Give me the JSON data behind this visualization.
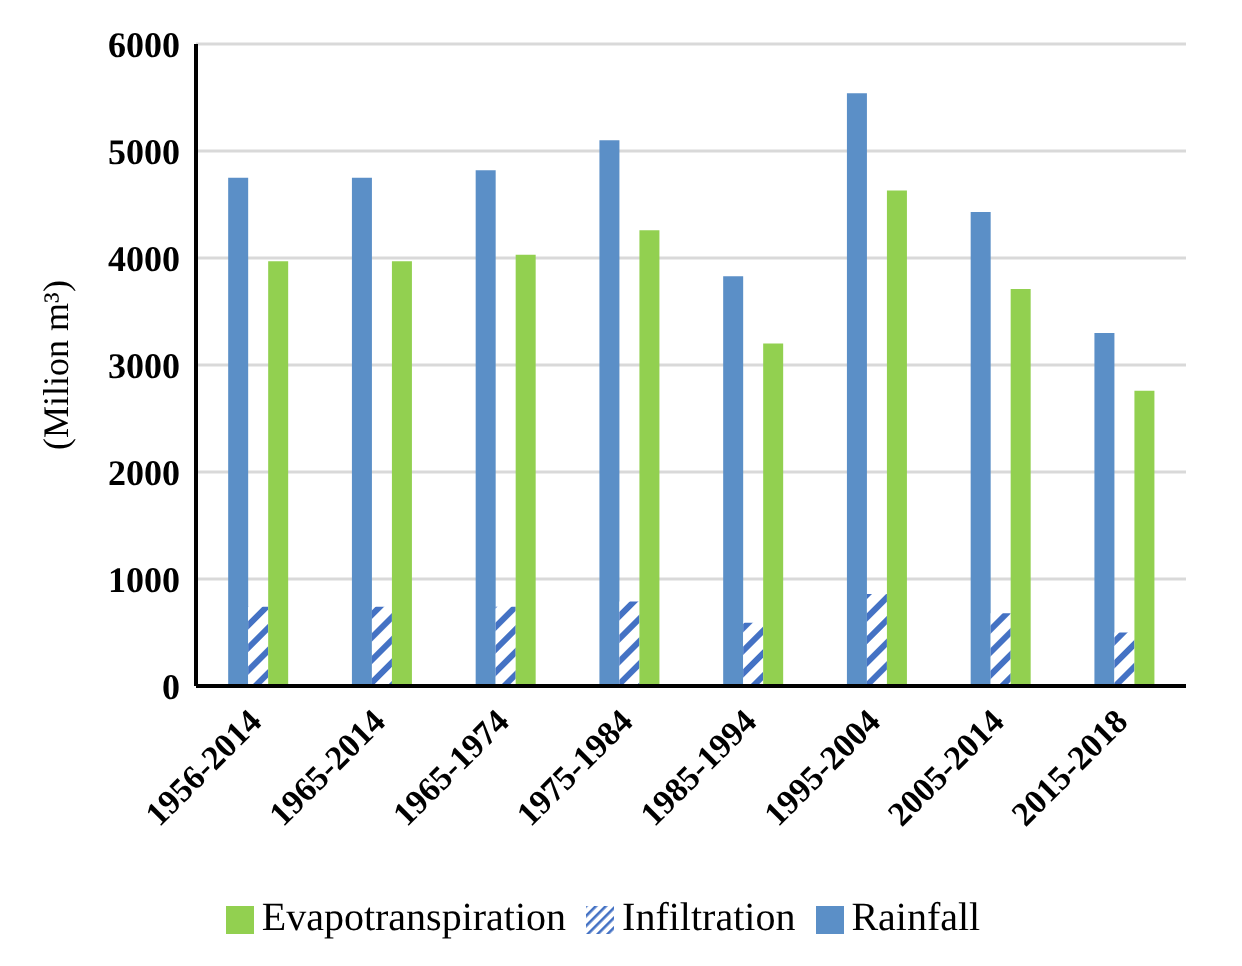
{
  "chart_data": {
    "type": "bar",
    "ylabel": "(Milion m³)",
    "categories": [
      "1956-2014",
      "1965-2014",
      "1965-1974",
      "1975-1984",
      "1985-1994",
      "1995-2004",
      "2005-2014",
      "2015-2018"
    ],
    "series": [
      {
        "name": "Rainfall",
        "color": "#5b8fc7",
        "values": [
          4750,
          4750,
          4820,
          5100,
          3830,
          5540,
          4430,
          3300
        ]
      },
      {
        "name": "Infiltration",
        "color": "#4472c4",
        "values": [
          740,
          740,
          740,
          790,
          590,
          860,
          680,
          500
        ]
      },
      {
        "name": "Evapotranspiration",
        "color": "#92d050",
        "values": [
          3970,
          3970,
          4030,
          4260,
          3200,
          4630,
          3710,
          2760
        ]
      }
    ],
    "ylim": [
      0,
      6000
    ],
    "yticks": [
      0,
      1000,
      2000,
      3000,
      4000,
      5000,
      6000
    ],
    "grid": "y",
    "legend": "bottom"
  }
}
